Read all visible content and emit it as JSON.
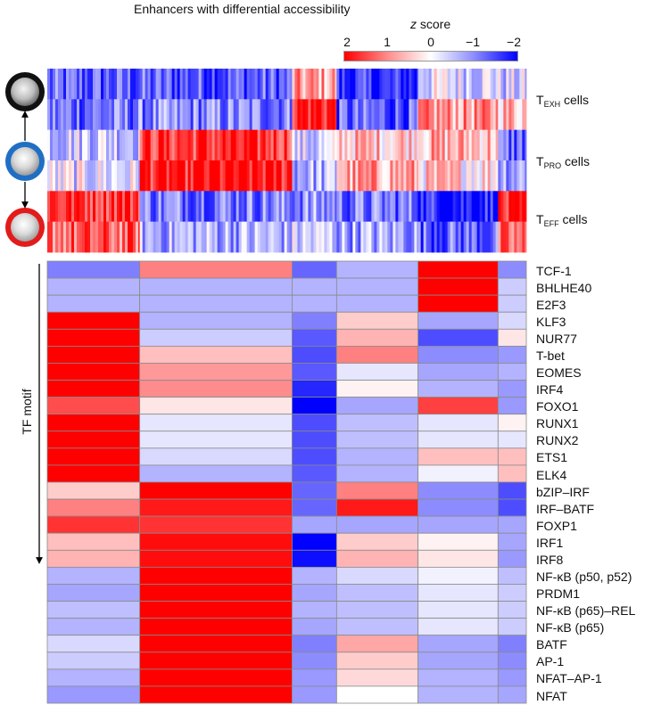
{
  "chart_data": [
    {
      "type": "heatmap",
      "title": "Enhancers with differential accessibility",
      "legend": {
        "title_italic": "z",
        "title_rest": " score",
        "ticks": [
          "2",
          "1",
          "0",
          "−1",
          "−2"
        ],
        "placement": "top-right"
      },
      "cell_types": [
        {
          "name": "T",
          "sub": "EXH",
          "suffix": " cells"
        },
        {
          "name": "T",
          "sub": "PRO",
          "suffix": " cells"
        },
        {
          "name": "T",
          "sub": "EFF",
          "suffix": " cells"
        }
      ],
      "clusters": 6,
      "cluster_fractions": [
        0.193,
        0.318,
        0.093,
        0.17,
        0.167,
        0.059
      ],
      "rows": [
        [
          -1.3,
          -1.3,
          0.7,
          -1.7,
          -0.2,
          -0.4
        ],
        [
          -1.1,
          -1.0,
          1.8,
          -1.3,
          0.8,
          0.6
        ],
        [
          -0.3,
          1.6,
          -0.4,
          0.5,
          0.6,
          -1.2
        ],
        [
          -0.2,
          1.8,
          -0.6,
          0.7,
          0.3,
          -0.6
        ],
        [
          1.7,
          -1.0,
          -0.9,
          -1.1,
          -1.7,
          1.5
        ],
        [
          1.2,
          -0.6,
          -0.4,
          -0.7,
          -1.2,
          1.0
        ]
      ]
    },
    {
      "type": "heatmap",
      "ylabel": "TF motif",
      "row_labels": [
        "TCF-1",
        "BHLHE40",
        "E2F3",
        "KLF3",
        "NUR77",
        "T-bet",
        "EOMES",
        "IRF4",
        "FOXO1",
        "RUNX1",
        "RUNX2",
        "ETS1",
        "ELK4",
        "bZIP–IRF",
        "IRF–BATF",
        "FOXP1",
        "IRF1",
        "IRF8",
        "NF-κB (p50, p52)",
        "PRDM1",
        "NF-κB (p65)–REL",
        "NF-κB (p65)",
        "BATF",
        "AP-1",
        "NFAT–AP-1",
        "NFAT"
      ],
      "values": [
        [
          -1.0,
          1.0,
          -1.2,
          -0.6,
          2.0,
          -0.9
        ],
        [
          -0.6,
          -0.6,
          -0.6,
          -0.6,
          2.0,
          -0.4
        ],
        [
          -0.6,
          -0.6,
          -0.6,
          -0.6,
          2.0,
          -0.4
        ],
        [
          2.0,
          -0.6,
          -1.0,
          0.4,
          -0.7,
          -0.3
        ],
        [
          2.0,
          -0.4,
          -1.3,
          0.6,
          -1.4,
          0.2
        ],
        [
          2.0,
          0.5,
          -1.4,
          1.0,
          -0.9,
          -0.8
        ],
        [
          2.0,
          0.8,
          -1.3,
          -0.2,
          -0.7,
          -0.6
        ],
        [
          2.0,
          0.9,
          -1.7,
          0.1,
          -0.6,
          -0.8
        ],
        [
          1.4,
          0.2,
          -2.0,
          -0.7,
          1.5,
          -0.8
        ],
        [
          2.0,
          -0.2,
          -1.4,
          -0.5,
          -0.2,
          0.1
        ],
        [
          2.0,
          -0.2,
          -1.4,
          -0.5,
          -0.2,
          -0.2
        ],
        [
          2.0,
          -0.3,
          -1.4,
          -0.6,
          0.5,
          0.5
        ],
        [
          2.0,
          -0.6,
          -1.3,
          -0.6,
          -0.1,
          0.5
        ],
        [
          0.4,
          2.0,
          -1.2,
          1.0,
          -0.9,
          -1.4
        ],
        [
          1.0,
          1.8,
          -1.2,
          1.8,
          -0.9,
          -1.4
        ],
        [
          1.6,
          1.6,
          -0.7,
          -0.7,
          -0.7,
          -0.7
        ],
        [
          0.5,
          1.9,
          -2.0,
          0.4,
          0.1,
          -0.7
        ],
        [
          0.6,
          1.9,
          -1.9,
          0.6,
          0.2,
          -0.8
        ],
        [
          -0.6,
          2.0,
          -0.6,
          -0.3,
          -0.1,
          -0.5
        ],
        [
          -0.7,
          2.0,
          -0.7,
          -0.5,
          -0.2,
          -0.4
        ],
        [
          -0.5,
          2.0,
          -0.6,
          -0.5,
          -0.2,
          -0.4
        ],
        [
          -0.6,
          2.0,
          -0.7,
          -0.5,
          -0.2,
          -0.4
        ],
        [
          -0.3,
          2.0,
          -1.0,
          0.7,
          -0.7,
          -1.0
        ],
        [
          -0.4,
          2.0,
          -0.9,
          0.4,
          -0.7,
          -0.9
        ],
        [
          -0.6,
          2.0,
          -0.8,
          0.3,
          -0.6,
          -0.8
        ],
        [
          -0.8,
          2.0,
          -0.8,
          0.0,
          -0.6,
          -0.7
        ]
      ]
    }
  ]
}
